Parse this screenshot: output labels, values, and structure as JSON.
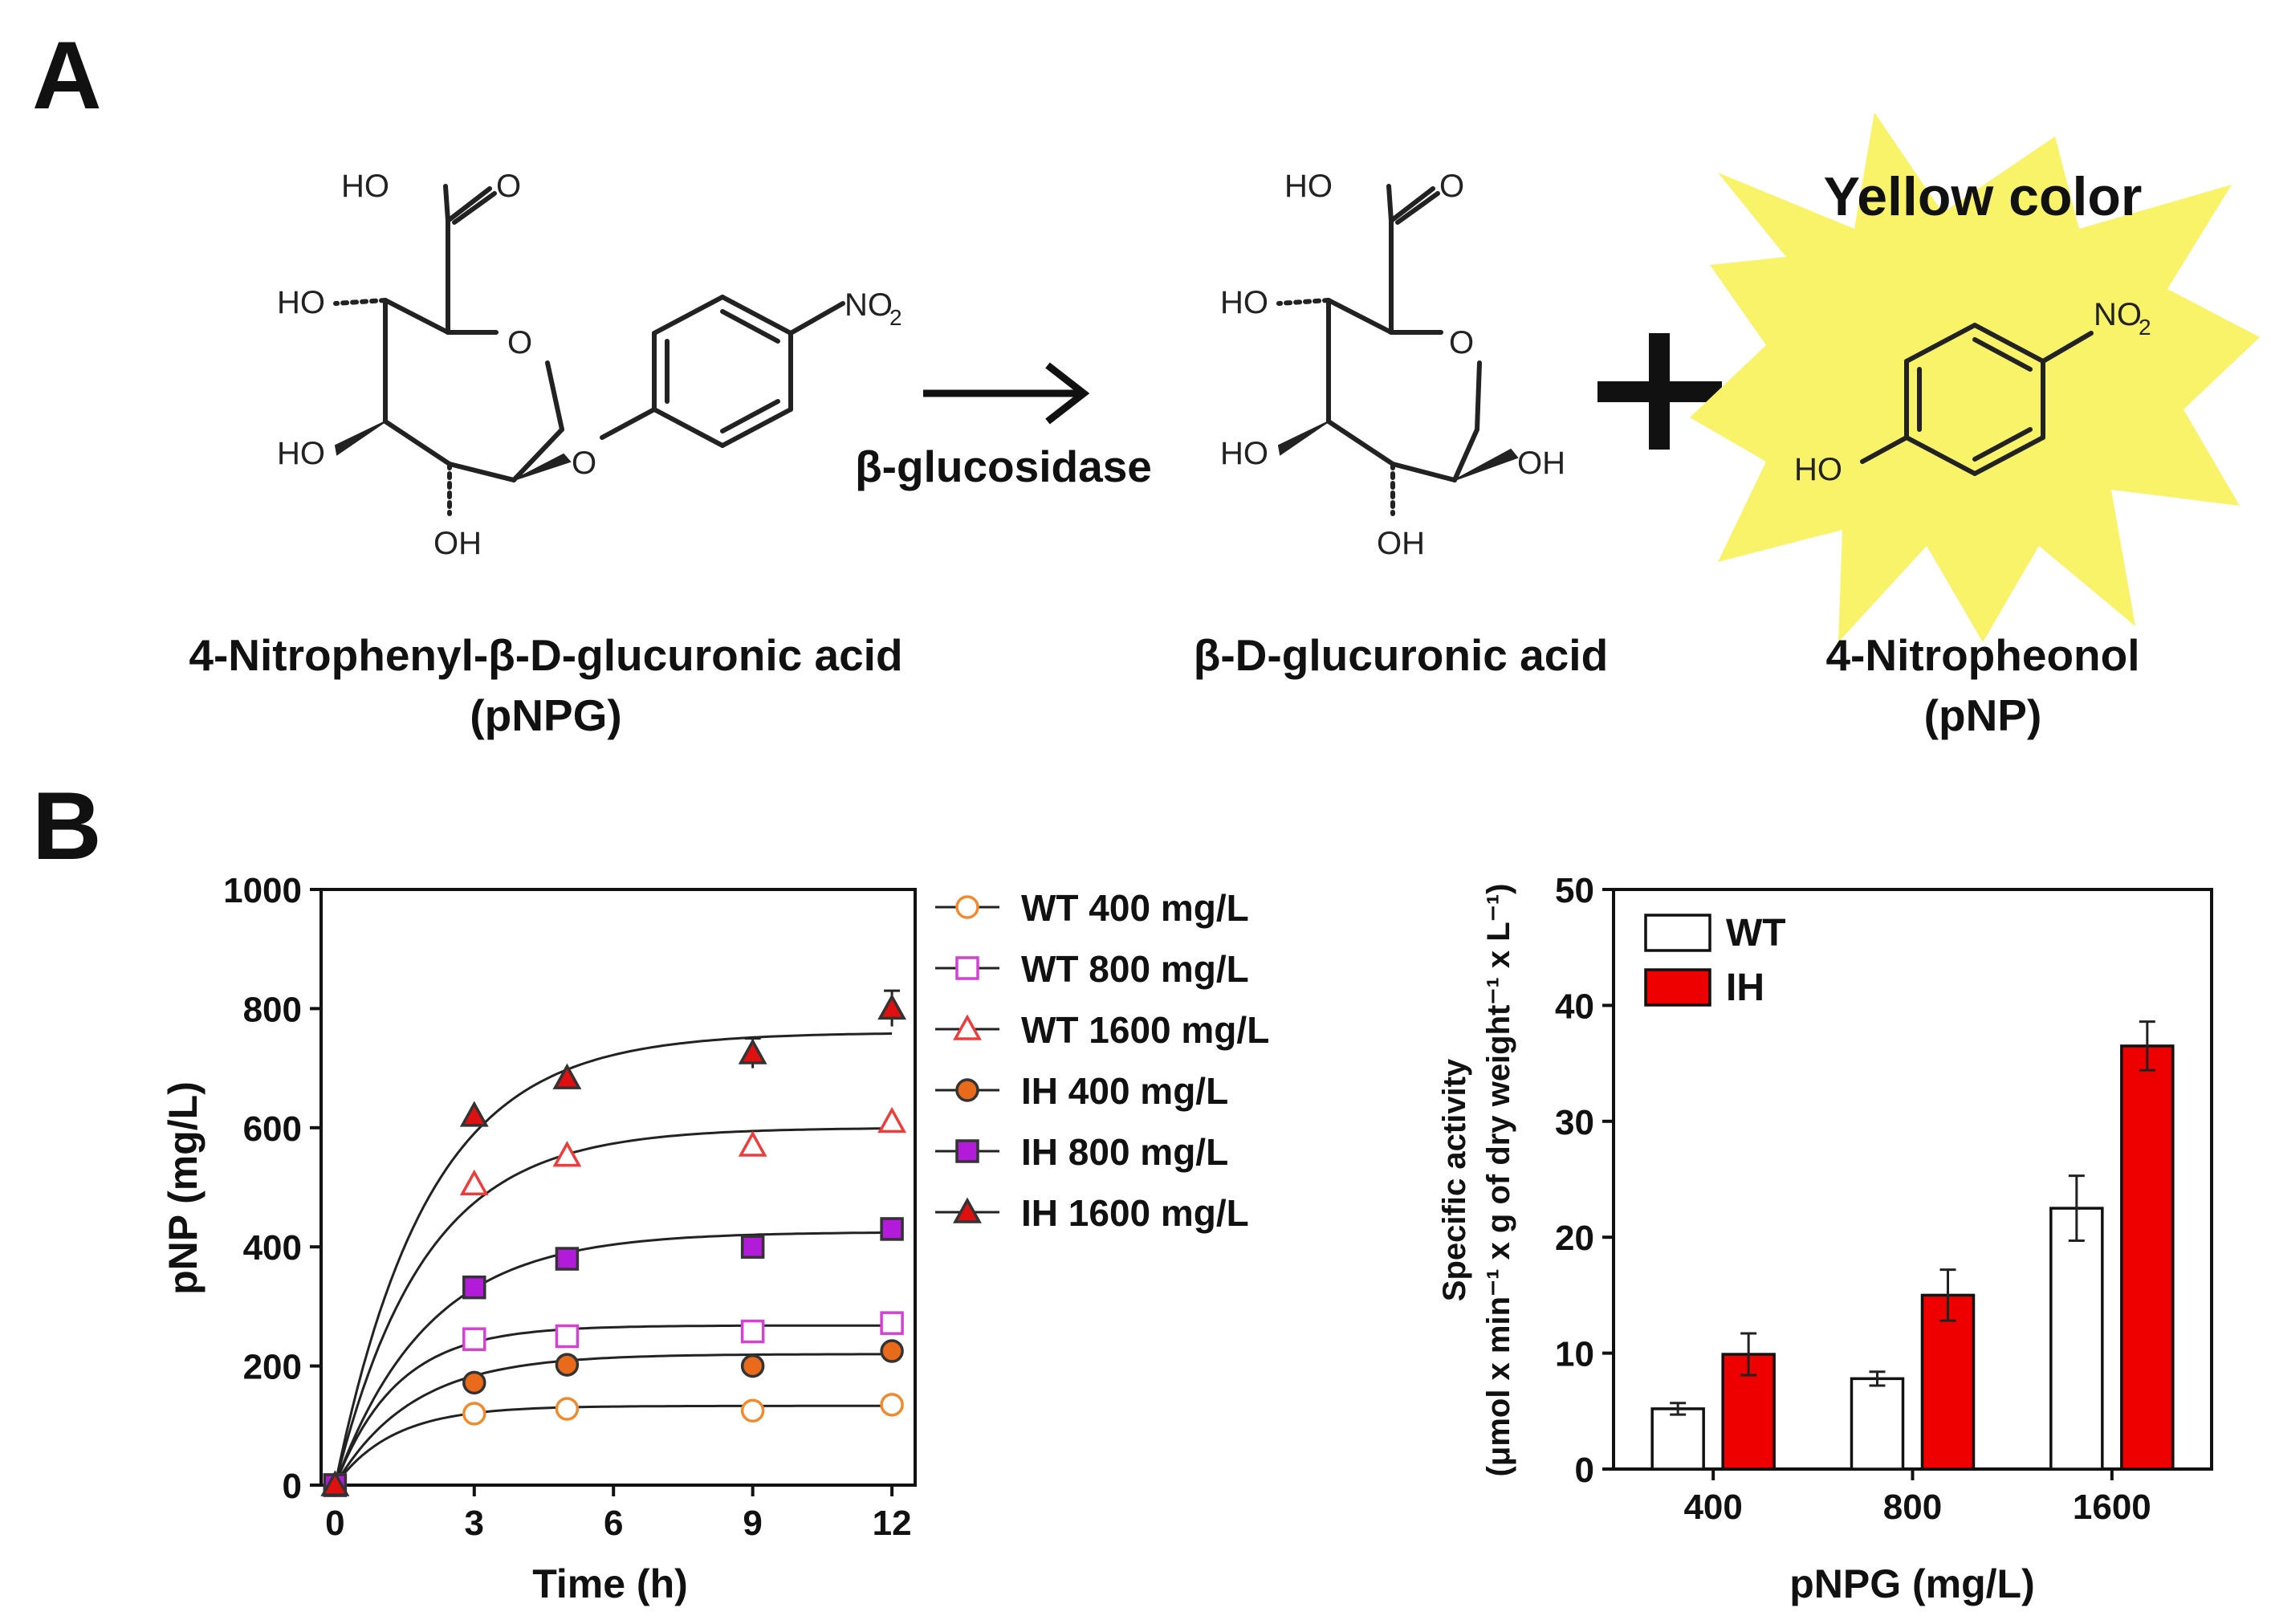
{
  "panel_a": {
    "label": "A",
    "substrate": {
      "atoms": {
        "carboxyl_oh": "HO",
        "carboxyl_o": "O",
        "ring_o": "O",
        "glyco_o": "O",
        "ho_top": "HO",
        "ho_bottom": "HO",
        "oh_bottom": "OH",
        "nitro": "NO",
        "nitro_sub": "2"
      },
      "name": "4-Nitrophenyl-β-D-glucuronic  acid",
      "abbr": "(pNPG)"
    },
    "enzyme": "β-glucosidase",
    "product1": {
      "atoms": {
        "carboxyl_oh": "HO",
        "carboxyl_o": "O",
        "ring_o": "O",
        "ho_top": "HO",
        "ho_bottom": "HO",
        "oh_right": "OH",
        "oh_bottom": "OH"
      },
      "name": "β-D-glucuronic  acid"
    },
    "plus": "+",
    "product2": {
      "atoms": {
        "ho": "HO",
        "nitro": "NO",
        "nitro_sub": "2"
      },
      "highlight": "Yellow color",
      "name": "4-Nitropheonol",
      "abbr": "(pNP)",
      "burst_color": "#f9f36a"
    }
  },
  "panel_b": {
    "label": "B"
  },
  "chart_data": [
    {
      "type": "scatter",
      "xlabel": "Time (h)",
      "ylabel": "pNP (mg/L)",
      "xlim": [
        -0.3,
        12.5
      ],
      "ylim": [
        0,
        1000
      ],
      "xticks": [
        "0",
        "3",
        "6",
        "9",
        "12"
      ],
      "yticks": [
        "0",
        "200",
        "400",
        "600",
        "800",
        "1000"
      ],
      "fit_curves": true,
      "legend_position": "outside-right",
      "series": [
        {
          "name": "WT 400 mg/L",
          "marker": "circle",
          "filled": false,
          "color": "#f28a2b",
          "x": [
            0,
            3,
            5,
            9,
            12
          ],
          "y": [
            0,
            120,
            128,
            125,
            135
          ],
          "fit_max": 133,
          "fit_k": 0.8
        },
        {
          "name": "WT 800 mg/L",
          "marker": "square",
          "filled": false,
          "color": "#d640d6",
          "x": [
            0,
            3,
            5,
            9,
            12
          ],
          "y": [
            0,
            245,
            250,
            258,
            272
          ],
          "fit_max": 268,
          "fit_k": 0.75
        },
        {
          "name": "WT 1600 mg/L",
          "marker": "triangle",
          "filled": false,
          "color": "#f03b3b",
          "x": [
            0,
            3,
            5,
            9,
            12
          ],
          "y": [
            0,
            505,
            553,
            570,
            610
          ],
          "fit_max": 600,
          "fit_k": 0.52
        },
        {
          "name": "IH 400 mg/L",
          "marker": "circle",
          "filled": true,
          "color": "#e86a1a",
          "x": [
            0,
            3,
            5,
            9,
            12
          ],
          "y": [
            0,
            172,
            202,
            200,
            225
          ],
          "fit_max": 220,
          "fit_k": 0.6
        },
        {
          "name": "IH 800 mg/L",
          "marker": "square",
          "filled": true,
          "color": "#b21bd9",
          "x": [
            0,
            3,
            5,
            9,
            12
          ],
          "y": [
            0,
            332,
            380,
            400,
            430
          ],
          "fit_max": 425,
          "fit_k": 0.5
        },
        {
          "name": "IH 1600 mg/L",
          "marker": "triangle",
          "filled": true,
          "color": "#e01010",
          "x": [
            0,
            3,
            5,
            9,
            12
          ],
          "y": [
            0,
            620,
            683,
            725,
            800
          ],
          "fit_max": 760,
          "fit_k": 0.5,
          "err": [
            0,
            0,
            0,
            25,
            30
          ]
        }
      ]
    },
    {
      "type": "bar",
      "xlabel": "pNPG (mg/L)",
      "ylabel_lines": [
        "Specific activity",
        "(μmol x min⁻¹ x g of dry weight⁻¹ x L⁻¹)"
      ],
      "categories": [
        "400",
        "800",
        "1600"
      ],
      "ylim": [
        0,
        50
      ],
      "yticks": [
        "0",
        "10",
        "20",
        "30",
        "40",
        "50"
      ],
      "legend_position": "top-left",
      "series": [
        {
          "name": "WT",
          "color": "#ffffff",
          "values": [
            5.2,
            7.8,
            22.5
          ],
          "err": [
            0.5,
            0.6,
            2.8
          ]
        },
        {
          "name": "IH",
          "color": "#ee0000",
          "values": [
            9.9,
            15.0,
            36.5
          ],
          "err": [
            1.8,
            2.2,
            2.1
          ]
        }
      ]
    }
  ]
}
